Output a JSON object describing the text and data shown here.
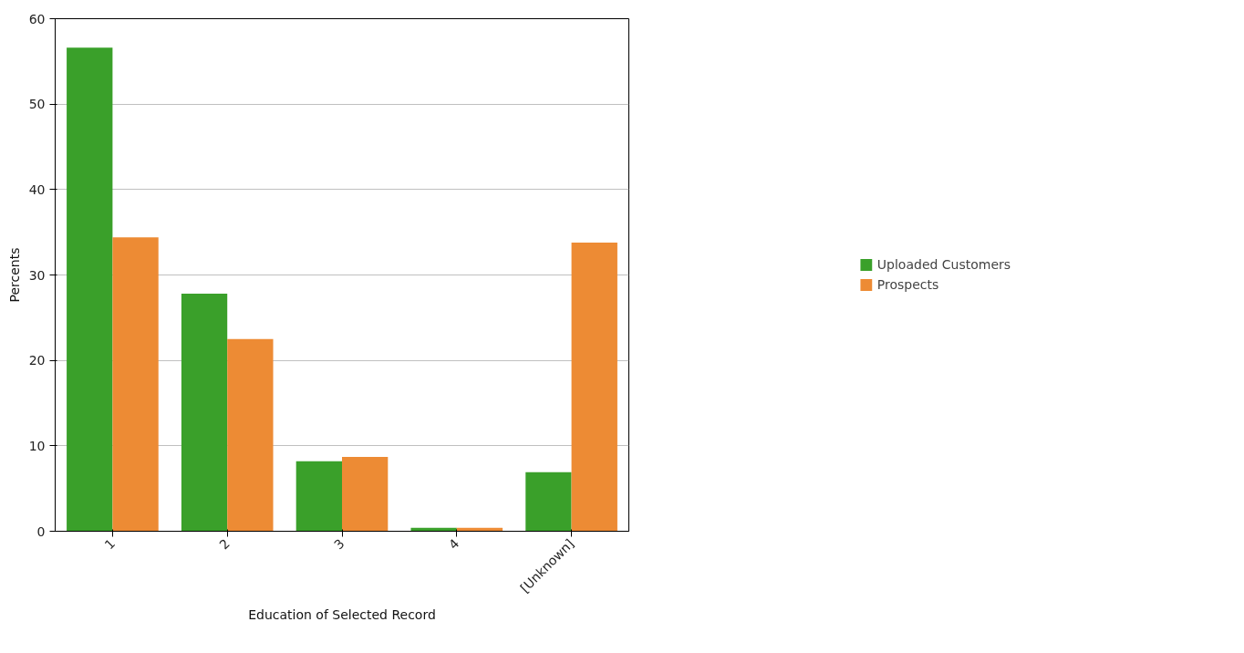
{
  "chart_data": {
    "type": "bar",
    "xlabel": "Education of Selected Record",
    "ylabel": "Percents",
    "categories": [
      "1",
      "2",
      "3",
      "4",
      "[Unknown]"
    ],
    "series": [
      {
        "name": "Uploaded Customers",
        "color": "#3aa02a",
        "values": [
          56.6,
          27.8,
          8.2,
          0.4,
          6.9
        ]
      },
      {
        "name": "Prospects",
        "color": "#ed8b34",
        "values": [
          34.4,
          22.5,
          8.7,
          0.4,
          33.8
        ]
      }
    ],
    "ylim": [
      0,
      60
    ],
    "yticks": [
      0,
      10,
      20,
      30,
      40,
      50,
      60
    ],
    "grid": "y",
    "legend": "right"
  }
}
